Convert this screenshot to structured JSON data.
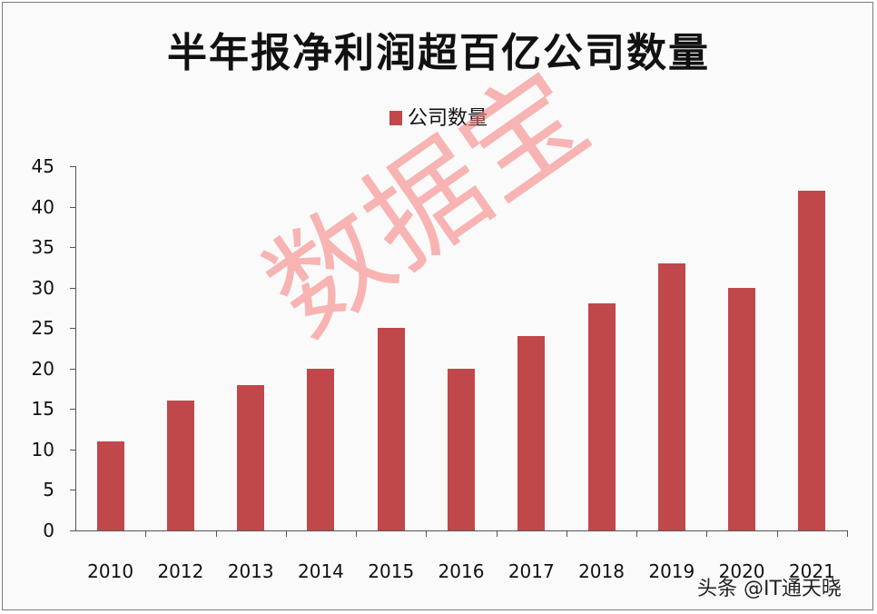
{
  "chart_data": {
    "type": "bar",
    "title": "半年报净利润超百亿公司数量",
    "legend": [
      "公司数量"
    ],
    "legend_position": "top",
    "categories": [
      "2010",
      "2012",
      "2013",
      "2014",
      "2015",
      "2016",
      "2017",
      "2018",
      "2019",
      "2020",
      "2021"
    ],
    "series": [
      {
        "name": "公司数量",
        "values": [
          11,
          16,
          18,
          20,
          25,
          20,
          24,
          28,
          33,
          30,
          42
        ],
        "color": "#c0484a"
      }
    ],
    "xlabel": "",
    "ylabel": "",
    "ylim": [
      0,
      45
    ],
    "yticks": [
      0,
      5,
      10,
      15,
      20,
      25,
      30,
      35,
      40,
      45
    ],
    "grid": false
  },
  "watermark": "数据宝",
  "credit": "头条 @IT通天晓"
}
